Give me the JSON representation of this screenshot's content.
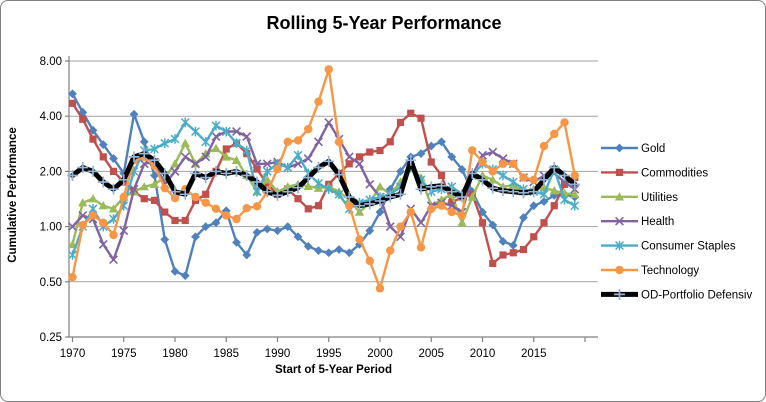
{
  "title": "Rolling 5-Year Performance",
  "y_axis": {
    "title": "Cumulative Performance",
    "tick_labels": [
      "8.00",
      "4.00",
      "2.00",
      "1.00",
      "0.50",
      "0.25"
    ],
    "tick_values": [
      8,
      4,
      2,
      1,
      0.5,
      0.25
    ]
  },
  "x_axis": {
    "title": "Start of 5-Year Period",
    "tick_labels": [
      "1970",
      "1975",
      "1980",
      "1985",
      "1990",
      "1995",
      "2000",
      "2005",
      "2010",
      "2015"
    ],
    "tick_values": [
      1970,
      1975,
      1980,
      1985,
      1990,
      1995,
      2000,
      2005,
      2010,
      2015
    ]
  },
  "legend": {
    "position": "right",
    "items": [
      "Gold",
      "Commodities",
      "Utilities",
      "Health",
      "Consumer Staples",
      "Technology",
      "OD-Portfolio Defensiv"
    ]
  },
  "colors": {
    "gridline": "#A3A3A3",
    "axis": "#808080",
    "text": "#000000",
    "od_marker": "#95B3D7"
  },
  "chart_data": {
    "type": "line",
    "x_label": "Start of 5-Year Period",
    "y_label": "Cumulative Performance",
    "y_scale": "log2",
    "ylim": [
      0.25,
      8
    ],
    "xlim": [
      1970,
      2020
    ],
    "grid": "horizontal-only",
    "legend_position": "right",
    "x": [
      1970,
      1971,
      1972,
      1973,
      1974,
      1975,
      1976,
      1977,
      1978,
      1979,
      1980,
      1981,
      1982,
      1983,
      1984,
      1985,
      1986,
      1987,
      1988,
      1989,
      1990,
      1991,
      1992,
      1993,
      1994,
      1995,
      1996,
      1997,
      1998,
      1999,
      2000,
      2001,
      2002,
      2003,
      2004,
      2005,
      2006,
      2007,
      2008,
      2009,
      2010,
      2011,
      2012,
      2013,
      2014,
      2015,
      2016,
      2017,
      2018,
      2019
    ],
    "series": [
      {
        "name": "Gold",
        "color": "#4F81BD",
        "marker": "diamond",
        "line_width": 2.4,
        "values": [
          5.3,
          4.2,
          3.35,
          2.8,
          2.35,
          1.95,
          4.1,
          2.9,
          1.9,
          0.85,
          0.57,
          0.54,
          0.88,
          1.0,
          1.05,
          1.22,
          0.82,
          0.7,
          0.93,
          0.97,
          0.95,
          1.0,
          0.88,
          0.78,
          0.74,
          0.72,
          0.75,
          0.72,
          0.8,
          0.95,
          1.2,
          1.6,
          2.0,
          2.4,
          2.5,
          2.75,
          2.9,
          2.4,
          2.05,
          1.55,
          1.2,
          1.02,
          0.83,
          0.79,
          1.12,
          1.3,
          1.37,
          1.48,
          1.5,
          1.45
        ]
      },
      {
        "name": "Commodities",
        "color": "#C0504D",
        "marker": "square",
        "line_width": 2.4,
        "values": [
          4.7,
          3.85,
          3.0,
          2.4,
          2.0,
          1.75,
          1.55,
          1.42,
          1.39,
          1.2,
          1.08,
          1.08,
          1.39,
          1.5,
          2.0,
          2.65,
          2.85,
          2.5,
          2.06,
          1.7,
          1.5,
          1.6,
          1.42,
          1.25,
          1.3,
          1.7,
          1.95,
          2.2,
          2.4,
          2.55,
          2.6,
          2.9,
          3.7,
          4.15,
          3.9,
          2.25,
          1.9,
          1.35,
          1.45,
          1.5,
          1.05,
          0.63,
          0.7,
          0.72,
          0.75,
          0.88,
          1.05,
          1.3,
          1.7,
          1.85
        ]
      },
      {
        "name": "Utilities",
        "color": "#9BBB59",
        "marker": "triangle",
        "line_width": 2.4,
        "values": [
          0.8,
          1.35,
          1.42,
          1.3,
          1.25,
          1.45,
          1.55,
          1.65,
          1.7,
          1.85,
          2.2,
          2.85,
          2.2,
          2.5,
          2.67,
          2.4,
          2.3,
          1.9,
          1.55,
          1.8,
          1.55,
          1.65,
          1.7,
          1.66,
          1.62,
          1.65,
          1.55,
          1.4,
          1.2,
          1.35,
          1.65,
          1.5,
          1.75,
          2.1,
          1.85,
          1.3,
          1.4,
          1.5,
          1.05,
          1.45,
          1.9,
          1.8,
          1.65,
          1.68,
          1.55,
          1.6,
          1.63,
          1.57,
          1.52,
          1.5
        ]
      },
      {
        "name": "Health",
        "color": "#8064A2",
        "marker": "x",
        "line_width": 2.4,
        "values": [
          1.0,
          1.15,
          1.1,
          0.8,
          0.66,
          0.95,
          1.6,
          2.2,
          2.25,
          1.7,
          2.0,
          2.4,
          2.2,
          2.4,
          3.1,
          3.3,
          3.3,
          3.1,
          2.2,
          2.2,
          2.25,
          2.1,
          2.2,
          2.35,
          2.9,
          3.7,
          3.0,
          2.4,
          2.2,
          1.7,
          1.45,
          1.0,
          0.88,
          1.25,
          1.05,
          1.3,
          1.35,
          1.3,
          1.2,
          1.9,
          2.45,
          2.55,
          2.35,
          2.2,
          1.85,
          1.75,
          1.9,
          1.95,
          1.75,
          1.6
        ]
      },
      {
        "name": "Consumer Staples",
        "color": "#4BACC6",
        "marker": "asterisk",
        "line_width": 2.4,
        "values": [
          0.7,
          1.0,
          1.25,
          1.0,
          1.1,
          1.3,
          2.0,
          2.6,
          2.65,
          2.85,
          3.0,
          3.7,
          3.3,
          2.9,
          3.55,
          3.3,
          2.85,
          2.6,
          1.55,
          2.0,
          2.2,
          2.1,
          2.45,
          1.95,
          1.72,
          1.6,
          1.5,
          1.25,
          1.35,
          1.4,
          1.45,
          1.5,
          1.65,
          2.1,
          1.8,
          1.55,
          1.6,
          1.65,
          1.5,
          1.9,
          2.2,
          2.05,
          1.9,
          1.75,
          1.6,
          1.55,
          1.5,
          2.05,
          1.4,
          1.3
        ]
      },
      {
        "name": "Technology",
        "color": "#F79646",
        "marker": "circle",
        "line_width": 2.4,
        "values": [
          0.53,
          1.02,
          1.15,
          1.05,
          0.9,
          1.45,
          2.3,
          2.4,
          2.15,
          1.62,
          1.43,
          1.6,
          1.45,
          1.35,
          1.25,
          1.15,
          1.1,
          1.26,
          1.29,
          1.54,
          2.06,
          2.9,
          2.95,
          3.4,
          4.8,
          7.2,
          2.9,
          1.3,
          0.85,
          0.65,
          0.46,
          0.74,
          1.0,
          1.2,
          0.77,
          1.25,
          1.3,
          1.2,
          1.15,
          2.6,
          2.25,
          2.0,
          2.2,
          2.2,
          1.85,
          1.8,
          2.75,
          3.2,
          3.7,
          1.9
        ]
      },
      {
        "name": "OD-Portfolio Defensiv",
        "color": "#000000",
        "marker": "plus",
        "marker_color": "#95B3D7",
        "line_width": 5,
        "values": [
          1.9,
          2.1,
          2.0,
          1.75,
          1.6,
          1.8,
          2.4,
          2.5,
          2.3,
          1.95,
          1.55,
          1.5,
          1.95,
          1.85,
          2.0,
          1.95,
          2.0,
          1.9,
          1.75,
          1.55,
          1.48,
          1.55,
          1.63,
          1.85,
          2.1,
          2.27,
          1.92,
          1.45,
          1.3,
          1.33,
          1.38,
          1.45,
          1.5,
          2.3,
          1.6,
          1.65,
          1.67,
          1.55,
          1.45,
          1.95,
          1.8,
          1.62,
          1.57,
          1.55,
          1.53,
          1.55,
          1.8,
          2.1,
          1.9,
          1.7
        ]
      }
    ]
  }
}
